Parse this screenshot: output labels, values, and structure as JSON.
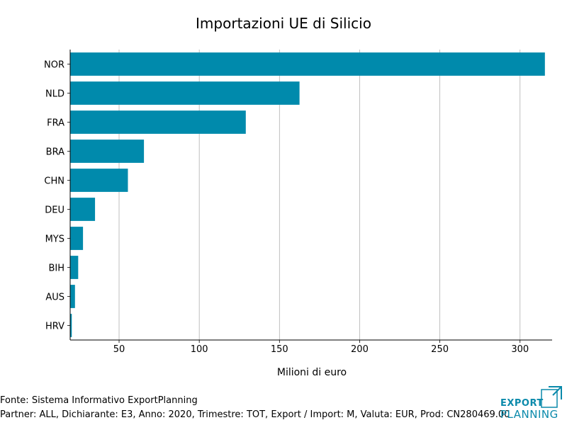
{
  "chart_data": {
    "type": "bar",
    "orientation": "horizontal",
    "title": "Importazioni UE di Silicio",
    "xlabel": "Milioni di euro",
    "ylabel": "",
    "categories": [
      "NOR",
      "NLD",
      "FRA",
      "BRA",
      "CHN",
      "DEU",
      "MYS",
      "BIH",
      "AUS",
      "HRV"
    ],
    "values": [
      315.5,
      162.5,
      129,
      65.5,
      55.5,
      35,
      27.5,
      24.5,
      22.5,
      20.5
    ],
    "xlim": [
      19.5,
      320
    ],
    "xticks": [
      50,
      100,
      150,
      200,
      250,
      300
    ],
    "grid": true,
    "bar_color": "#008aac"
  },
  "footer": {
    "source": "Fonte: Sistema Informativo ExportPlanning",
    "details": "Partner: ALL, Dichiarante: E3, Anno: 2020, Trimestre: TOT, Export / Import: M, Valuta: EUR, Prod: CN280469.00"
  },
  "logo": {
    "line1": "EXPORT",
    "line2": "PLANNING",
    "color": "#0b8aab"
  }
}
